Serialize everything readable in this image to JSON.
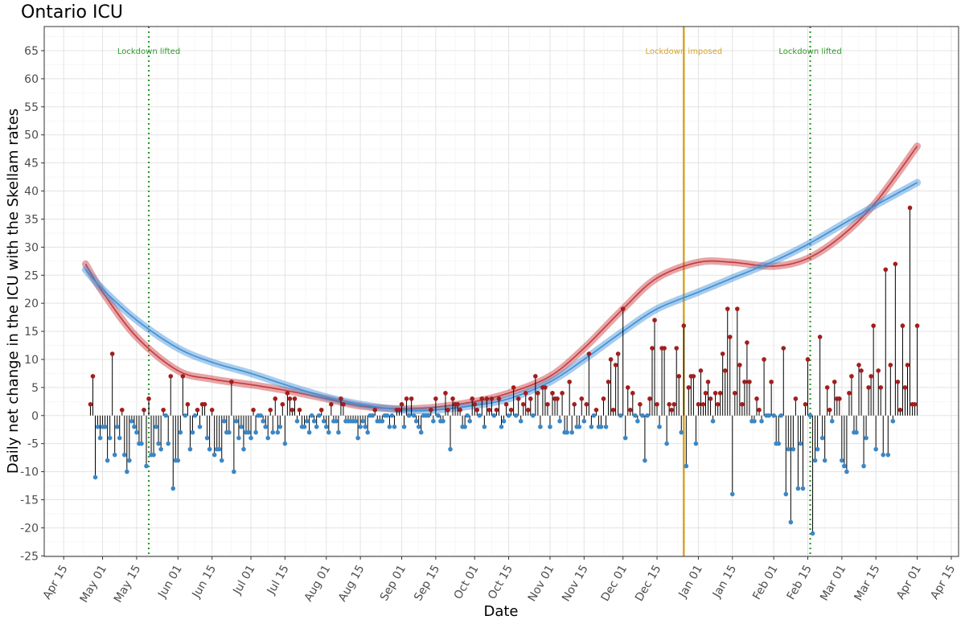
{
  "chart_data": {
    "type": "lollipop-with-smooth-lines",
    "title": "Ontario ICU",
    "xlabel": "Date",
    "ylabel": "Daily net change in the ICU with the Skellam rates",
    "xlim": [
      "2020-04-07",
      "2021-04-18"
    ],
    "ylim": [
      -25.1,
      69.3
    ],
    "yticks": [
      -25,
      -20,
      -15,
      -10,
      -5,
      0,
      5,
      10,
      15,
      20,
      25,
      30,
      35,
      40,
      45,
      50,
      55,
      60,
      65
    ],
    "xticks": [
      {
        "date": "2020-04-15",
        "label": "Apr 15"
      },
      {
        "date": "2020-05-01",
        "label": "May 01"
      },
      {
        "date": "2020-05-15",
        "label": "May 15"
      },
      {
        "date": "2020-06-01",
        "label": "Jun 01"
      },
      {
        "date": "2020-06-15",
        "label": "Jun 15"
      },
      {
        "date": "2020-07-01",
        "label": "Jul 01"
      },
      {
        "date": "2020-07-15",
        "label": "Jul 15"
      },
      {
        "date": "2020-08-01",
        "label": "Aug 01"
      },
      {
        "date": "2020-08-15",
        "label": "Aug 15"
      },
      {
        "date": "2020-09-01",
        "label": "Sep 01"
      },
      {
        "date": "2020-09-15",
        "label": "Sep 15"
      },
      {
        "date": "2020-10-01",
        "label": "Oct 01"
      },
      {
        "date": "2020-10-15",
        "label": "Oct 15"
      },
      {
        "date": "2020-11-01",
        "label": "Nov 01"
      },
      {
        "date": "2020-11-15",
        "label": "Nov 15"
      },
      {
        "date": "2020-12-01",
        "label": "Dec 01"
      },
      {
        "date": "2020-12-15",
        "label": "Dec 15"
      },
      {
        "date": "2021-01-01",
        "label": "Jan 01"
      },
      {
        "date": "2021-01-15",
        "label": "Jan 15"
      },
      {
        "date": "2021-02-01",
        "label": "Feb 01"
      },
      {
        "date": "2021-02-15",
        "label": "Feb 15"
      },
      {
        "date": "2021-03-01",
        "label": "Mar 01"
      },
      {
        "date": "2021-03-15",
        "label": "Mar 15"
      },
      {
        "date": "2021-04-01",
        "label": "Apr 01"
      },
      {
        "date": "2021-04-15",
        "label": "Apr 15"
      }
    ],
    "grid": true,
    "colors": {
      "positive": "#a31d1d",
      "negative": "#3a87c7",
      "stem": "#000000",
      "red_smooth": "#c8383c",
      "blue_smooth": "#3d8fd6",
      "lifted": "#2e9a2e",
      "imposed": "#d4a52a"
    },
    "daily_values": [
      {
        "month": "2020-04",
        "from_day": 26,
        "values": [
          2,
          7,
          -11,
          -2,
          -4
        ]
      },
      {
        "month": "2020-05",
        "from_day": 1,
        "values": [
          -2,
          -2,
          -8,
          -4,
          11,
          -7,
          -2,
          -4,
          1,
          -7,
          -10,
          -8,
          -1,
          -2,
          -3,
          -5,
          -5,
          1,
          -9,
          3,
          -7,
          -7,
          -2,
          -5,
          -6,
          1,
          0,
          -5,
          7,
          -13,
          -8
        ]
      },
      {
        "month": "2020-06",
        "from_day": 1,
        "values": [
          -8,
          -3,
          7,
          0,
          2,
          -6,
          -3,
          0,
          1,
          -2,
          2,
          2,
          -4,
          -6,
          1,
          -7,
          -6,
          -6,
          -8,
          -1,
          -3,
          -3,
          6,
          -10,
          -1,
          -4,
          -2,
          -6,
          -3,
          -3
        ]
      },
      {
        "month": "2020-07",
        "from_day": 1,
        "values": [
          -4,
          1,
          -3,
          0,
          0,
          -1,
          -2,
          -4,
          1,
          -3,
          3,
          -3,
          -2,
          2,
          -5,
          4,
          3,
          1,
          3,
          -1,
          1,
          -2,
          -2,
          -1,
          -3,
          0,
          -1,
          -2,
          0,
          1,
          -1
        ]
      },
      {
        "month": "2020-08",
        "from_day": 1,
        "values": [
          -2,
          -3,
          2,
          -1,
          -1,
          -3,
          3,
          2,
          -1,
          -1,
          -1,
          -1,
          -1,
          -4,
          -2,
          -1,
          -2,
          -3,
          0,
          0,
          1,
          -1,
          -1,
          -1,
          0,
          0,
          -2,
          0,
          -2,
          1,
          1
        ]
      },
      {
        "month": "2020-09",
        "from_day": 1,
        "values": [
          2,
          -2,
          3,
          0,
          3,
          0,
          -1,
          -2,
          -3,
          0,
          0,
          0,
          1,
          -1,
          3,
          0,
          -1,
          -1,
          4,
          1,
          -6,
          3,
          2,
          2,
          1,
          -2,
          -2,
          0,
          -1,
          3
        ]
      },
      {
        "month": "2020-10",
        "from_day": 1,
        "values": [
          2,
          1,
          0,
          3,
          -2,
          3,
          1,
          3,
          0,
          1,
          3,
          -2,
          -1,
          2,
          0,
          1,
          5,
          0,
          3,
          -1,
          2,
          4,
          1,
          3,
          0,
          7,
          4,
          -2,
          5,
          5,
          2
        ]
      },
      {
        "month": "2020-11",
        "from_day": 1,
        "values": [
          -2,
          4,
          3,
          3,
          -1,
          4,
          -3,
          -3,
          6,
          -3,
          2,
          -2,
          -2,
          3,
          -1,
          2,
          11,
          -2,
          0,
          1,
          -2,
          -2,
          3,
          -2,
          6,
          10,
          1,
          9,
          11,
          0
        ]
      },
      {
        "month": "2020-12",
        "from_day": 1,
        "values": [
          19,
          -4,
          5,
          1,
          4,
          0,
          -1,
          2,
          0,
          -8,
          0,
          3,
          12,
          17,
          2,
          -2,
          12,
          12,
          -5,
          2,
          1,
          2,
          12,
          7,
          -3,
          16,
          -9,
          5,
          7,
          7,
          -5
        ]
      },
      {
        "month": "2021-01",
        "from_day": 1,
        "values": [
          2,
          8,
          2,
          4,
          6,
          3,
          -1,
          4,
          2,
          4,
          11,
          8,
          19,
          14,
          -14,
          4,
          19,
          9,
          2,
          6,
          13,
          6,
          -1,
          -1,
          3,
          1,
          -1,
          10,
          0,
          0,
          6
        ]
      },
      {
        "month": "2021-02",
        "from_day": 1,
        "values": [
          0,
          -5,
          -5,
          0,
          12,
          -14,
          -6,
          -19,
          -6,
          3,
          -13,
          -5,
          -13,
          2,
          10,
          0,
          -21,
          -8,
          -6,
          14,
          -4,
          -8,
          5,
          1,
          -1,
          6,
          3,
          3
        ]
      },
      {
        "month": "2021-03",
        "from_day": 1,
        "values": [
          -8,
          -9,
          -10,
          4,
          7,
          -3,
          -3,
          9,
          8,
          -9,
          -4,
          5,
          7,
          16,
          -6,
          8,
          5,
          -7,
          26,
          -7,
          9,
          -1,
          27,
          6,
          1,
          16,
          5,
          9,
          37,
          2,
          2
        ]
      },
      {
        "month": "2021-04",
        "from_day": 1,
        "values": [
          16
        ]
      }
    ],
    "smooth_series": [
      {
        "color": "red",
        "points": [
          [
            "2020-04-24",
            27
          ],
          [
            "2020-05-01",
            22
          ],
          [
            "2020-05-15",
            14
          ],
          [
            "2020-06-01",
            8
          ],
          [
            "2020-06-15",
            6.5
          ],
          [
            "2020-07-01",
            5.5
          ],
          [
            "2020-07-15",
            4.5
          ],
          [
            "2020-08-01",
            3
          ],
          [
            "2020-08-15",
            1.7
          ],
          [
            "2020-09-01",
            1.2
          ],
          [
            "2020-09-15",
            1.5
          ],
          [
            "2020-10-01",
            2.5
          ],
          [
            "2020-10-15",
            4
          ],
          [
            "2020-11-01",
            7
          ],
          [
            "2020-11-15",
            12
          ],
          [
            "2020-12-01",
            19
          ],
          [
            "2020-12-15",
            24.5
          ],
          [
            "2021-01-01",
            27.3
          ],
          [
            "2021-01-15",
            27.3
          ],
          [
            "2021-02-01",
            26.6
          ],
          [
            "2021-02-15",
            28
          ],
          [
            "2021-03-01",
            32
          ],
          [
            "2021-03-15",
            38
          ],
          [
            "2021-04-01",
            48
          ]
        ]
      },
      {
        "color": "blue",
        "points": [
          [
            "2020-04-24",
            26
          ],
          [
            "2020-05-01",
            22.5
          ],
          [
            "2020-05-15",
            17
          ],
          [
            "2020-06-01",
            12
          ],
          [
            "2020-06-15",
            9.5
          ],
          [
            "2020-07-01",
            7.5
          ],
          [
            "2020-07-15",
            5.5
          ],
          [
            "2020-08-01",
            3.3
          ],
          [
            "2020-08-15",
            2
          ],
          [
            "2020-09-01",
            1
          ],
          [
            "2020-09-15",
            1
          ],
          [
            "2020-10-01",
            1.8
          ],
          [
            "2020-10-15",
            3
          ],
          [
            "2020-11-01",
            6
          ],
          [
            "2020-11-15",
            10
          ],
          [
            "2020-12-01",
            15
          ],
          [
            "2020-12-15",
            19
          ],
          [
            "2021-01-01",
            22
          ],
          [
            "2021-01-15",
            24.5
          ],
          [
            "2021-02-01",
            27.5
          ],
          [
            "2021-02-15",
            30.5
          ],
          [
            "2021-03-01",
            34
          ],
          [
            "2021-03-15",
            37.5
          ],
          [
            "2021-04-01",
            41.5
          ]
        ]
      }
    ],
    "annotations": [
      {
        "date": "2020-05-20",
        "label": "Lockdown lifted",
        "style": "dotted",
        "color": "lifted"
      },
      {
        "date": "2020-12-26",
        "label": "Lockdown imposed",
        "style": "solid",
        "color": "imposed"
      },
      {
        "date": "2021-02-16",
        "label": "Lockdown lifted",
        "style": "dotted",
        "color": "lifted"
      }
    ]
  }
}
